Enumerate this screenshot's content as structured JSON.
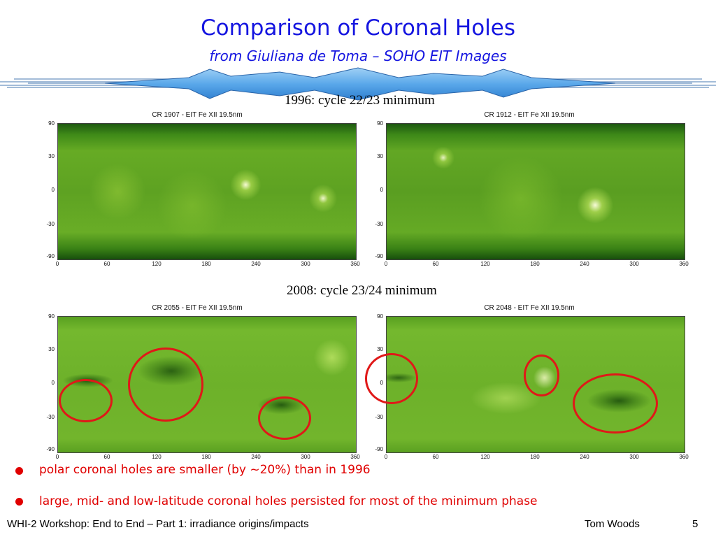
{
  "slide": {
    "title": "Comparison of Coronal Holes",
    "subtitle": "from Giuliana de Toma – SOHO EIT Images",
    "section_1996": "1996: cycle 22/23 minimum",
    "section_2008": "2008: cycle 23/24 minimum",
    "panels": [
      {
        "caption": "CR 1907 - EIT Fe XII 19.5nm"
      },
      {
        "caption": "CR 1912 - EIT Fe XII 19.5nm"
      },
      {
        "caption": "CR 2055 - EIT Fe XII 19.5nm"
      },
      {
        "caption": "CR 2048 - EIT Fe XII 19.5nm"
      }
    ],
    "y_ticks": [
      "90",
      "30",
      "0",
      "-30",
      "-90"
    ],
    "x_ticks": [
      "0",
      "60",
      "120",
      "180",
      "240",
      "300",
      "360"
    ],
    "bullets": [
      "polar coronal holes are smaller (by ~20%) than in 1996",
      "large, mid- and low-latitude coronal holes persisted for most of the minimum phase"
    ],
    "footer": {
      "left": "WHI-2 Workshop: End to End – Part 1: irradiance origins/impacts",
      "author": "Tom Woods",
      "page": "5"
    }
  },
  "colors": {
    "title_blue": "#1515e0",
    "bullet_red": "#e00000",
    "circle_red": "#e01818",
    "map_green": "#5aa21e"
  }
}
